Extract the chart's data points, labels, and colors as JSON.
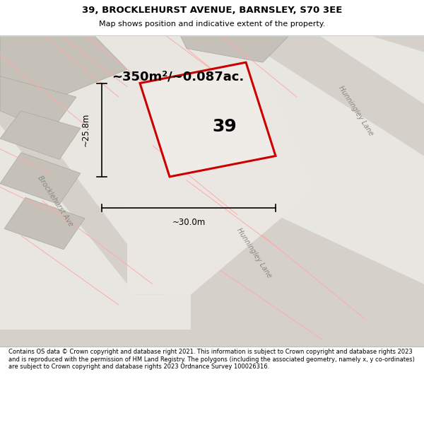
{
  "title": "39, BROCKLEHURST AVENUE, BARNSLEY, S70 3EE",
  "subtitle": "Map shows position and indicative extent of the property.",
  "footer": "Contains OS data © Crown copyright and database right 2021. This information is subject to Crown copyright and database rights 2023 and is reproduced with the permission of HM Land Registry. The polygons (including the associated geometry, namely x, y co-ordinates) are subject to Crown copyright and database rights 2023 Ordnance Survey 100026316.",
  "area_label": "~350m²/~0.087ac.",
  "number_label": "39",
  "dim_width": "~30.0m",
  "dim_height": "~25.8m",
  "map_bg": "#e8e6e1",
  "plot_edge": "#cc0000",
  "street_label_1": "Brocklehurst Ave",
  "street_label_2": "Hunningley Lane",
  "street_label_3": "Hunningley Lane",
  "red_line_color": "#ffaaaa",
  "fig_width": 6.0,
  "fig_height": 6.25
}
